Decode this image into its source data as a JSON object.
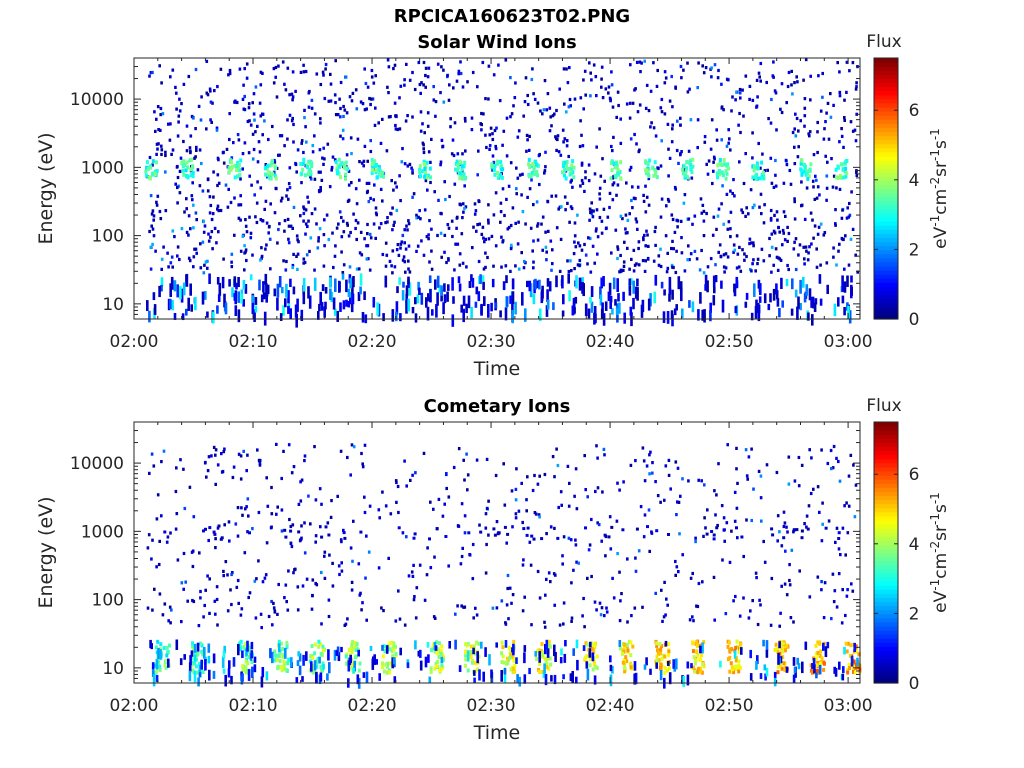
{
  "figure": {
    "title": "RPCICA160623T02.PNG"
  },
  "chart_data": [
    {
      "type": "heatmap",
      "title": "Solar Wind Ions",
      "xlabel": "Time",
      "ylabel": "Energy (eV)",
      "x_range": [
        "02:00",
        "03:01"
      ],
      "x_ticks": [
        "02:00",
        "02:10",
        "02:20",
        "02:30",
        "02:40",
        "02:50",
        "03:00"
      ],
      "y_scale": "log",
      "y_range": [
        6,
        40000
      ],
      "y_ticks": [
        10,
        100,
        1000,
        10000
      ],
      "y_tick_labels": [
        "10",
        "100",
        "1000",
        "10000"
      ],
      "colorbar": {
        "title": "Flux",
        "label": "eV-1cm-2sr-1s-1",
        "range": [
          0,
          7.5
        ],
        "ticks": [
          0,
          2,
          4,
          6
        ],
        "colormap": "jet"
      },
      "grid": false,
      "features": [
        {
          "description": "Recurring bursts near 1000 eV about every 3.2 min",
          "energy_eV": 1000,
          "flux": 3.5,
          "times": [
            "02:01",
            "02:04",
            "02:08",
            "02:11",
            "02:14",
            "02:17",
            "02:20",
            "02:24",
            "02:27",
            "02:30",
            "02:33",
            "02:36",
            "02:40",
            "02:43",
            "02:46",
            "02:49",
            "02:52",
            "02:56",
            "02:59"
          ]
        },
        {
          "description": "Low-energy bands 8-25 eV at similar cadence",
          "energy_eV": [
            8,
            25
          ],
          "flux": 1.0
        },
        {
          "description": "Scattered background counts",
          "energy_eV": [
            30,
            40000
          ],
          "flux": 0.3
        }
      ]
    },
    {
      "type": "heatmap",
      "title": "Cometary Ions",
      "xlabel": "Time",
      "ylabel": "Energy (eV)",
      "x_range": [
        "02:00",
        "03:01"
      ],
      "x_ticks": [
        "02:00",
        "02:10",
        "02:20",
        "02:30",
        "02:40",
        "02:50",
        "03:00"
      ],
      "y_scale": "log",
      "y_range": [
        6,
        40000
      ],
      "y_ticks": [
        10,
        100,
        1000,
        10000
      ],
      "y_tick_labels": [
        "10",
        "100",
        "1000",
        "10000"
      ],
      "colorbar": {
        "title": "Flux",
        "label": "eV-1cm-2sr-1s-1",
        "range": [
          0,
          7.5
        ],
        "ticks": [
          0,
          2,
          4,
          6
        ],
        "colormap": "jet"
      },
      "grid": false,
      "features": [
        {
          "description": "Low-energy bursts 10-25 eV with flux increasing over interval",
          "energy_eV": [
            10,
            25
          ],
          "flux_range": [
            3.5,
            5.5
          ],
          "times": [
            "02:02",
            "02:05",
            "02:09",
            "02:12",
            "02:15",
            "02:18",
            "02:21",
            "02:25",
            "02:28",
            "02:31",
            "02:34",
            "02:38",
            "02:41",
            "02:44",
            "02:47",
            "02:50",
            "02:54",
            "02:57",
            "03:00"
          ]
        },
        {
          "description": "Sparse counts near 1000 eV",
          "energy_eV": 1000,
          "flux": 0.5
        },
        {
          "description": "Scattered background counts",
          "energy_eV": [
            40,
            20000
          ],
          "flux": 0.2
        }
      ]
    }
  ],
  "colors": {
    "axis": "#262626",
    "background": "#ffffff"
  }
}
